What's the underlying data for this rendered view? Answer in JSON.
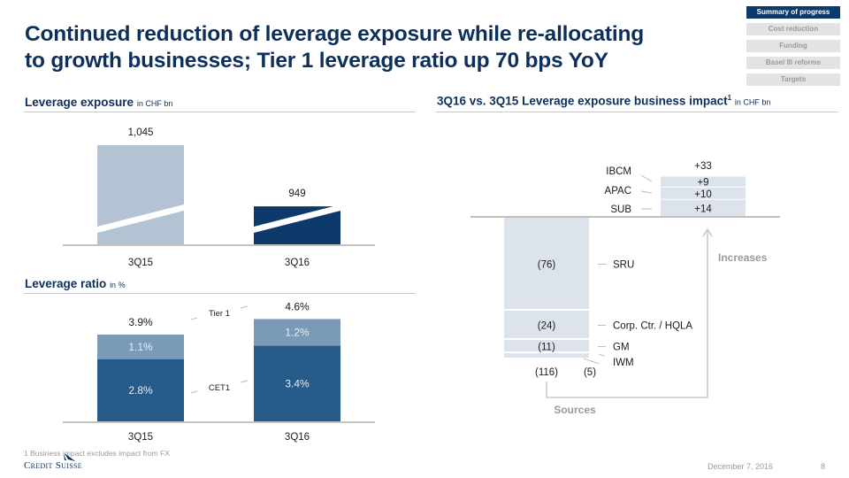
{
  "title": "Continued reduction of leverage exposure while re-allocating to growth businesses; Tier 1 leverage ratio up 70 bps YoY",
  "title_lines": [
    "Continued reduction of leverage exposure while re-allocating",
    "to growth businesses; Tier 1 leverage ratio up 70 bps YoY"
  ],
  "nav": {
    "items": [
      {
        "label": "Summary  of progress",
        "active": true
      },
      {
        "label": "Cost reduction",
        "active": false
      },
      {
        "label": "Funding",
        "active": false
      },
      {
        "label": "Basel III reforms",
        "active": false
      },
      {
        "label": "Targets",
        "active": false
      }
    ]
  },
  "sections": {
    "exposure": {
      "title": "Leverage exposure",
      "unit": "in CHF bn"
    },
    "ratio": {
      "title": "Leverage ratio",
      "unit": "in %"
    },
    "impact": {
      "title": "3Q16 vs. 3Q15 Leverage exposure business impact",
      "sup": "1",
      "unit": "in CHF bn"
    }
  },
  "colors": {
    "navy": "#0d3a6b",
    "bar_light": "#b3c3d3",
    "cet1": "#265b8a",
    "tier1_add": "#7b9ab7",
    "waterfall": "#dde3ea",
    "arrow": "#c8c8c8",
    "flow_label": "#9a9a9a"
  },
  "chart_data": [
    {
      "type": "bar",
      "title": "Leverage exposure",
      "unit": "in CHF bn",
      "categories": [
        "3Q15",
        "3Q16"
      ],
      "values": [
        1045,
        949
      ],
      "value_labels": [
        "1,045",
        "949"
      ],
      "axis_break": true,
      "legend": "none"
    },
    {
      "type": "bar",
      "stacked": true,
      "title": "Leverage ratio",
      "unit": "in %",
      "categories": [
        "3Q15",
        "3Q16"
      ],
      "series": [
        {
          "name": "CET1",
          "values": [
            2.8,
            3.4
          ],
          "labels": [
            "2.8%",
            "3.4%"
          ]
        },
        {
          "name": "Additional Tier 1",
          "values": [
            1.1,
            1.2
          ],
          "labels": [
            "1.1%",
            "1.2%"
          ]
        }
      ],
      "totals": [
        3.9,
        4.6
      ],
      "total_labels": [
        "3.9%",
        "4.6%"
      ],
      "callouts": [
        "Tier 1",
        "CET1"
      ]
    },
    {
      "type": "bar",
      "subtype": "waterfall",
      "title": "3Q16 vs. 3Q15 Leverage exposure business impact",
      "footnote_ref": "1",
      "unit": "in CHF bn",
      "sources": {
        "label": "Sources",
        "total": -116,
        "total_label": "(116)",
        "items": [
          {
            "name": "SRU",
            "value": -76,
            "label": "(76)"
          },
          {
            "name": "Corp. Ctr. / HQLA",
            "value": -24,
            "label": "(24)"
          },
          {
            "name": "GM",
            "value": -11,
            "label": "(11)"
          },
          {
            "name": "IWM",
            "value": -5,
            "label": "(5)"
          }
        ]
      },
      "increases": {
        "label": "Increases",
        "total": 33,
        "total_label": "+33",
        "items": [
          {
            "name": "IBCM",
            "value": 9,
            "label": "+9"
          },
          {
            "name": "APAC",
            "value": 10,
            "label": "+10"
          },
          {
            "name": "SUB",
            "value": 14,
            "label": "+14"
          }
        ]
      }
    }
  ],
  "footer": {
    "footnote": "1 Business impact excludes impact from FX",
    "logo": "Credit Suisse",
    "date": "December 7, 2016",
    "page": "8"
  }
}
